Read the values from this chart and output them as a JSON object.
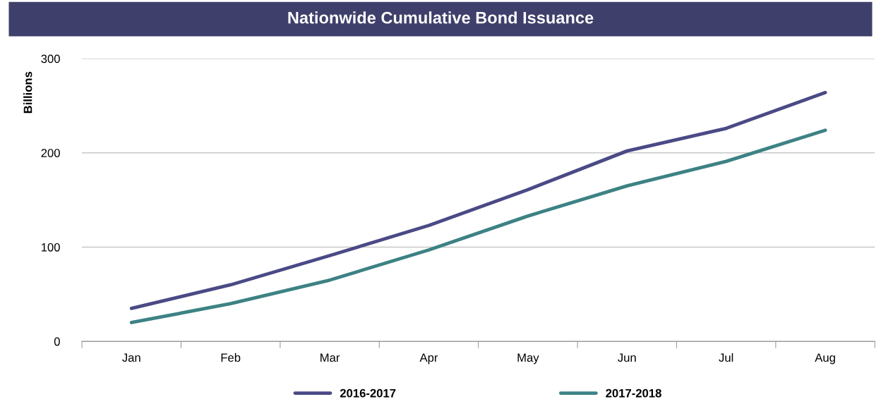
{
  "chart_data": {
    "type": "line",
    "title": "Nationwide Cumulative Bond Issuance",
    "ylabel": "Billions",
    "categories": [
      "Jan",
      "Feb",
      "Mar",
      "Apr",
      "May",
      "Jun",
      "Jul",
      "Aug"
    ],
    "series": [
      {
        "name": "2016-2017",
        "color": "#4b4a86",
        "values": [
          35,
          60,
          91,
          123,
          161,
          202,
          226,
          264
        ]
      },
      {
        "name": "2017-2018",
        "color": "#3d8284",
        "values": [
          20,
          40,
          65,
          97,
          133,
          165,
          191,
          224
        ]
      }
    ],
    "ylim": [
      0,
      300
    ],
    "yticks": [
      0,
      100,
      200,
      300
    ],
    "grid": "y",
    "legend": "bottom",
    "marker": "none",
    "line_style": "solid"
  }
}
